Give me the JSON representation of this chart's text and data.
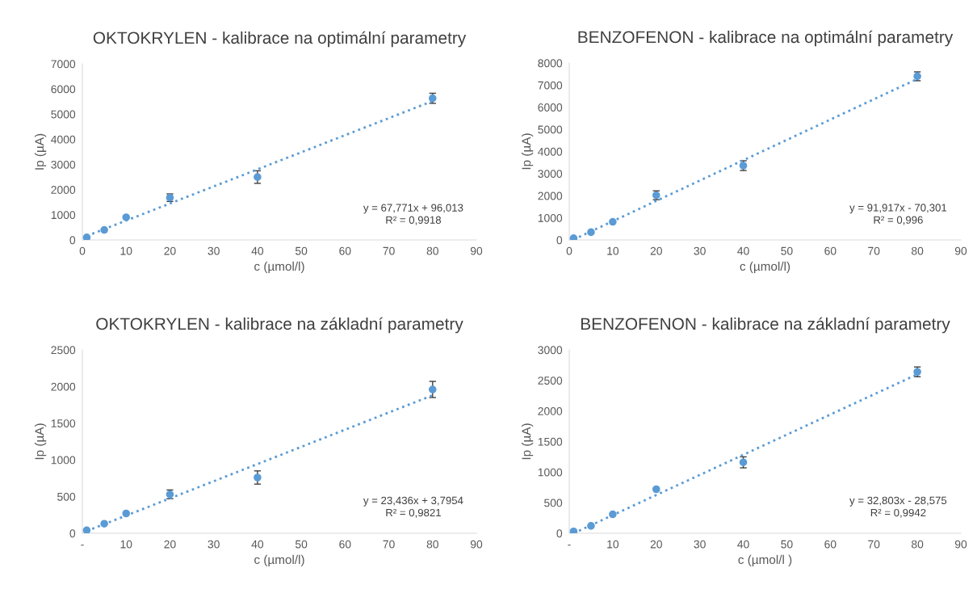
{
  "chart_data": [
    {
      "type": "scatter",
      "title": "OKTOKRYLEN - kalibrace na optimální parametry",
      "xlabel": "c (µmol/l)",
      "ylabel": "Ip (µA)",
      "xlim": [
        0,
        90
      ],
      "xticks": [
        0,
        10,
        20,
        30,
        40,
        50,
        60,
        70,
        80,
        90
      ],
      "ylim": [
        0,
        7000
      ],
      "yticks": [
        0,
        1000,
        2000,
        3000,
        4000,
        5000,
        6000,
        7000
      ],
      "grid": false,
      "legend": false,
      "series": [
        {
          "color": "#5b9bd5",
          "marker": "circle",
          "x": [
            1,
            5,
            10,
            20,
            40,
            80
          ],
          "values": [
            100,
            400,
            900,
            1680,
            2500,
            5630
          ],
          "errors": [
            null,
            null,
            null,
            150,
            250,
            200
          ]
        },
        {
          "type": "line",
          "color": "#5b9bd5",
          "marker": "none",
          "line_style": "dotted",
          "x": [
            1,
            80
          ],
          "values": [
            160,
            5520
          ]
        }
      ],
      "annotations": [
        "y = 67,771x + 96,013",
        "R² = 0,9918"
      ]
    },
    {
      "type": "scatter",
      "title": "BENZOFENON - kalibrace na optimální parametry",
      "xlabel": "c (µmol/l)",
      "ylabel": "Ip (µA)",
      "xlim": [
        0,
        90
      ],
      "xticks": [
        0,
        10,
        20,
        30,
        40,
        50,
        60,
        70,
        80,
        90
      ],
      "ylim": [
        0,
        8000
      ],
      "yticks": [
        0,
        1000,
        2000,
        3000,
        4000,
        5000,
        6000,
        7000,
        8000
      ],
      "grid": false,
      "legend": false,
      "series": [
        {
          "color": "#5b9bd5",
          "marker": "circle",
          "x": [
            1,
            5,
            10,
            20,
            40,
            80
          ],
          "values": [
            80,
            350,
            820,
            2020,
            3360,
            7400
          ],
          "errors": [
            null,
            null,
            null,
            200,
            220,
            200
          ]
        },
        {
          "type": "line",
          "color": "#5b9bd5",
          "marker": "none",
          "line_style": "dotted",
          "x": [
            1,
            80
          ],
          "values": [
            20,
            7280
          ]
        }
      ],
      "annotations": [
        "y = 91,917x - 70,301",
        "R² = 0,996"
      ]
    },
    {
      "type": "scatter",
      "title": "OKTOKRYLEN - kalibrace na základní parametry",
      "xlabel": "c (µmol/l)",
      "ylabel": "Ip (µA)",
      "xlim": [
        0,
        90
      ],
      "xticks": [
        {
          "value": 0,
          "label": "-"
        },
        10,
        20,
        30,
        40,
        50,
        60,
        70,
        80,
        90
      ],
      "ylim": [
        0,
        2500
      ],
      "yticks": [
        0,
        500,
        1000,
        1500,
        2000,
        2500
      ],
      "grid": false,
      "legend": false,
      "series": [
        {
          "color": "#5b9bd5",
          "marker": "circle",
          "x": [
            1,
            5,
            10,
            20,
            40,
            80
          ],
          "values": [
            40,
            130,
            270,
            530,
            760,
            1960
          ],
          "errors": [
            null,
            null,
            null,
            60,
            90,
            110
          ]
        },
        {
          "type": "line",
          "color": "#5b9bd5",
          "marker": "none",
          "line_style": "dotted",
          "x": [
            1,
            80
          ],
          "values": [
            30,
            1880
          ]
        }
      ],
      "annotations": [
        "y = 23,436x + 3,7954",
        "R² = 0,9821"
      ]
    },
    {
      "type": "scatter",
      "title": "BENZOFENON - kalibrace na základní parametry",
      "xlabel": "c (µmol/l )",
      "ylabel": "Ip (µA)",
      "xlim": [
        0,
        90
      ],
      "xticks": [
        {
          "value": 0,
          "label": "-"
        },
        10,
        20,
        30,
        40,
        50,
        60,
        70,
        80,
        90
      ],
      "ylim": [
        0,
        3000
      ],
      "yticks": [
        0,
        500,
        1000,
        1500,
        2000,
        2500,
        3000
      ],
      "grid": false,
      "legend": false,
      "series": [
        {
          "color": "#5b9bd5",
          "marker": "circle",
          "x": [
            1,
            5,
            10,
            20,
            40,
            80
          ],
          "values": [
            30,
            120,
            310,
            720,
            1160,
            2640
          ],
          "errors": [
            null,
            null,
            null,
            null,
            90,
            80
          ]
        },
        {
          "type": "line",
          "color": "#5b9bd5",
          "marker": "none",
          "line_style": "dotted",
          "x": [
            1,
            80
          ],
          "values": [
            0,
            2600
          ]
        }
      ],
      "annotations": [
        "y = 32,803x - 28,575",
        "R² = 0,9942"
      ]
    }
  ]
}
